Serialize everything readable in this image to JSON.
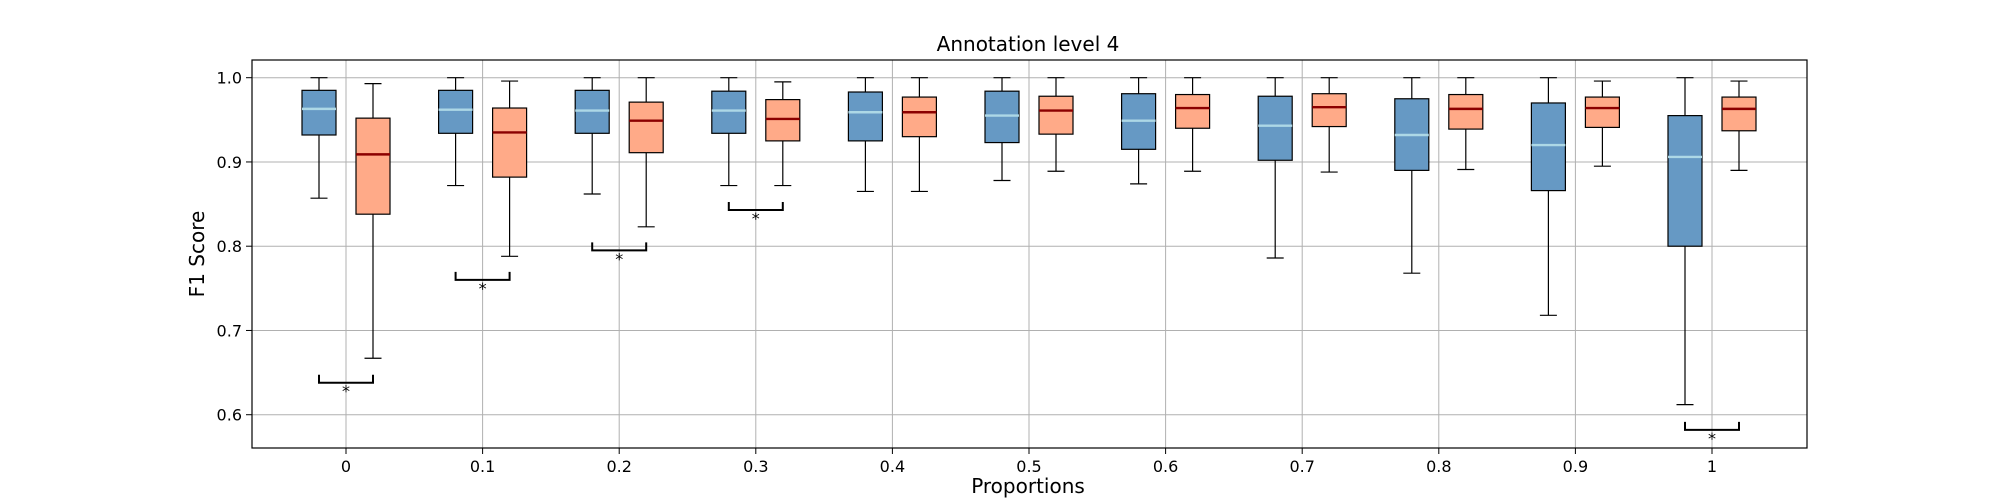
{
  "chart_data": {
    "type": "box",
    "title": "Annotation level 4",
    "xlabel": "Proportions",
    "ylabel": "F1 Score",
    "ylim": [
      0.56,
      1.02
    ],
    "yticks": [
      "0.6",
      "0.7",
      "0.8",
      "0.9",
      "1.0"
    ],
    "ytick_values": [
      0.6,
      0.7,
      0.8,
      0.9,
      1.0
    ],
    "grid": true,
    "categories": [
      "0",
      "0.1",
      "0.2",
      "0.3",
      "0.4",
      "0.5",
      "0.6",
      "0.7",
      "0.8",
      "0.9",
      "1"
    ],
    "series": [
      {
        "color": "#6699c4",
        "median_color": "#add8e6",
        "boxes": [
          {
            "whislo": 0.857,
            "q1": 0.932,
            "med": 0.963,
            "q3": 0.985,
            "whishi": 1.0
          },
          {
            "whislo": 0.872,
            "q1": 0.934,
            "med": 0.962,
            "q3": 0.985,
            "whishi": 1.0
          },
          {
            "whislo": 0.862,
            "q1": 0.934,
            "med": 0.961,
            "q3": 0.985,
            "whishi": 1.0
          },
          {
            "whislo": 0.872,
            "q1": 0.934,
            "med": 0.961,
            "q3": 0.984,
            "whishi": 1.0
          },
          {
            "whislo": 0.865,
            "q1": 0.925,
            "med": 0.959,
            "q3": 0.983,
            "whishi": 1.0
          },
          {
            "whislo": 0.878,
            "q1": 0.923,
            "med": 0.955,
            "q3": 0.984,
            "whishi": 1.0
          },
          {
            "whislo": 0.874,
            "q1": 0.915,
            "med": 0.949,
            "q3": 0.981,
            "whishi": 1.0
          },
          {
            "whislo": 0.786,
            "q1": 0.902,
            "med": 0.943,
            "q3": 0.978,
            "whishi": 1.0
          },
          {
            "whislo": 0.768,
            "q1": 0.89,
            "med": 0.932,
            "q3": 0.975,
            "whishi": 1.0
          },
          {
            "whislo": 0.718,
            "q1": 0.866,
            "med": 0.92,
            "q3": 0.97,
            "whishi": 1.0
          },
          {
            "whislo": 0.612,
            "q1": 0.8,
            "med": 0.906,
            "q3": 0.955,
            "whishi": 1.0
          }
        ]
      },
      {
        "color": "#ffaa88",
        "median_color": "#8b0000",
        "boxes": [
          {
            "whislo": 0.667,
            "q1": 0.838,
            "med": 0.909,
            "q3": 0.952,
            "whishi": 0.993
          },
          {
            "whislo": 0.788,
            "q1": 0.882,
            "med": 0.935,
            "q3": 0.964,
            "whishi": 0.996
          },
          {
            "whislo": 0.823,
            "q1": 0.911,
            "med": 0.949,
            "q3": 0.971,
            "whishi": 1.0
          },
          {
            "whislo": 0.872,
            "q1": 0.925,
            "med": 0.951,
            "q3": 0.974,
            "whishi": 0.995
          },
          {
            "whislo": 0.865,
            "q1": 0.93,
            "med": 0.959,
            "q3": 0.977,
            "whishi": 1.0
          },
          {
            "whislo": 0.889,
            "q1": 0.933,
            "med": 0.961,
            "q3": 0.978,
            "whishi": 1.0
          },
          {
            "whislo": 0.889,
            "q1": 0.94,
            "med": 0.964,
            "q3": 0.98,
            "whishi": 1.0
          },
          {
            "whislo": 0.888,
            "q1": 0.942,
            "med": 0.965,
            "q3": 0.981,
            "whishi": 1.0
          },
          {
            "whislo": 0.891,
            "q1": 0.939,
            "med": 0.963,
            "q3": 0.98,
            "whishi": 1.0
          },
          {
            "whislo": 0.895,
            "q1": 0.941,
            "med": 0.964,
            "q3": 0.977,
            "whishi": 0.996
          },
          {
            "whislo": 0.89,
            "q1": 0.937,
            "med": 0.963,
            "q3": 0.977,
            "whishi": 0.996
          }
        ]
      }
    ],
    "significance": [
      {
        "category": "0",
        "y": 0.638,
        "label": "*"
      },
      {
        "category": "0.1",
        "y": 0.76,
        "label": "*"
      },
      {
        "category": "0.2",
        "y": 0.795,
        "label": "*"
      },
      {
        "category": "0.3",
        "y": 0.843,
        "label": "*"
      },
      {
        "category": "1",
        "y": 0.582,
        "label": "*"
      }
    ]
  }
}
